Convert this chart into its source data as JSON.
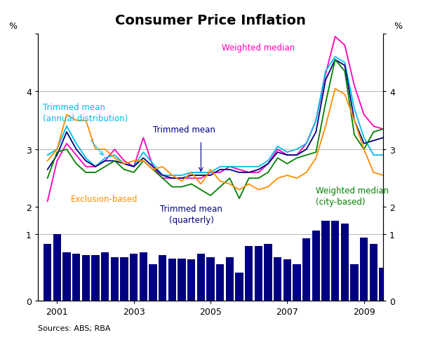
{
  "title": "Consumer Price Inflation",
  "source": "Sources: ABS; RBA",
  "line_ylim": [
    2.0,
    5.0
  ],
  "bar_ylim": [
    0,
    1.4
  ],
  "xmin": 2000.5,
  "xmax": 2009.5,
  "xticks": [
    2001,
    2003,
    2005,
    2007,
    2009
  ],
  "weighted_median": {
    "color": "#ff00bb",
    "x": [
      2000.75,
      2001.0,
      2001.25,
      2001.5,
      2001.75,
      2002.0,
      2002.25,
      2002.5,
      2002.75,
      2003.0,
      2003.25,
      2003.5,
      2003.75,
      2004.0,
      2004.25,
      2004.5,
      2004.75,
      2005.0,
      2005.25,
      2005.5,
      2005.75,
      2006.0,
      2006.25,
      2006.5,
      2006.75,
      2007.0,
      2007.25,
      2007.5,
      2007.75,
      2008.0,
      2008.25,
      2008.5,
      2008.75,
      2009.0,
      2009.25,
      2009.5
    ],
    "y": [
      2.1,
      2.8,
      3.1,
      2.9,
      2.7,
      2.7,
      2.8,
      3.0,
      2.8,
      2.7,
      3.2,
      2.7,
      2.5,
      2.5,
      2.5,
      2.5,
      2.5,
      2.6,
      2.6,
      2.7,
      2.65,
      2.6,
      2.6,
      2.75,
      3.0,
      2.9,
      2.9,
      3.1,
      3.5,
      4.3,
      4.95,
      4.8,
      4.1,
      3.6,
      3.4,
      3.35
    ]
  },
  "trimmed_mean_annual": {
    "color": "#00bbee",
    "x": [
      2000.75,
      2001.0,
      2001.25,
      2001.5,
      2001.75,
      2002.0,
      2002.25,
      2002.5,
      2002.75,
      2003.0,
      2003.25,
      2003.5,
      2003.75,
      2004.0,
      2004.25,
      2004.5,
      2004.75,
      2005.0,
      2005.25,
      2005.5,
      2005.75,
      2006.0,
      2006.25,
      2006.5,
      2006.75,
      2007.0,
      2007.25,
      2007.5,
      2007.75,
      2008.0,
      2008.25,
      2008.5,
      2008.75,
      2009.0,
      2009.25,
      2009.5
    ],
    "y": [
      2.9,
      3.0,
      3.4,
      3.1,
      2.85,
      2.7,
      2.85,
      2.9,
      2.75,
      2.7,
      2.95,
      2.75,
      2.55,
      2.55,
      2.55,
      2.6,
      2.6,
      2.6,
      2.7,
      2.7,
      2.7,
      2.7,
      2.7,
      2.8,
      3.05,
      2.95,
      3.0,
      3.1,
      3.5,
      4.35,
      4.6,
      4.5,
      3.7,
      3.2,
      2.9,
      2.9
    ]
  },
  "trimmed_mean": {
    "color": "#000080",
    "x": [
      2000.75,
      2001.0,
      2001.25,
      2001.5,
      2001.75,
      2002.0,
      2002.25,
      2002.5,
      2002.75,
      2003.0,
      2003.25,
      2003.5,
      2003.75,
      2004.0,
      2004.25,
      2004.5,
      2004.75,
      2005.0,
      2005.25,
      2005.5,
      2005.75,
      2006.0,
      2006.25,
      2006.5,
      2006.75,
      2007.0,
      2007.25,
      2007.5,
      2007.75,
      2008.0,
      2008.25,
      2008.5,
      2008.75,
      2009.0,
      2009.25,
      2009.5
    ],
    "y": [
      2.65,
      2.9,
      3.3,
      3.0,
      2.8,
      2.7,
      2.8,
      2.8,
      2.75,
      2.7,
      2.85,
      2.7,
      2.55,
      2.5,
      2.5,
      2.55,
      2.55,
      2.55,
      2.65,
      2.65,
      2.6,
      2.6,
      2.65,
      2.75,
      2.95,
      2.9,
      2.9,
      3.0,
      3.3,
      4.2,
      4.55,
      4.45,
      3.5,
      3.1,
      3.15,
      3.2
    ]
  },
  "weighted_median_city": {
    "color": "#008000",
    "x": [
      2000.75,
      2001.0,
      2001.25,
      2001.5,
      2001.75,
      2002.0,
      2002.25,
      2002.5,
      2002.75,
      2003.0,
      2003.25,
      2003.5,
      2003.75,
      2004.0,
      2004.25,
      2004.5,
      2004.75,
      2005.0,
      2005.25,
      2005.5,
      2005.75,
      2006.0,
      2006.25,
      2006.5,
      2006.75,
      2007.0,
      2007.25,
      2007.5,
      2007.75,
      2008.0,
      2008.25,
      2008.5,
      2008.75,
      2009.0,
      2009.25,
      2009.5
    ],
    "y": [
      2.5,
      2.95,
      3.0,
      2.75,
      2.6,
      2.6,
      2.7,
      2.8,
      2.65,
      2.6,
      2.8,
      2.65,
      2.5,
      2.35,
      2.35,
      2.4,
      2.3,
      2.2,
      2.35,
      2.5,
      2.15,
      2.5,
      2.5,
      2.6,
      2.85,
      2.75,
      2.85,
      2.9,
      2.95,
      3.8,
      4.55,
      4.35,
      3.25,
      3.0,
      3.3,
      3.35
    ]
  },
  "exclusion_based": {
    "color": "#ff8c00",
    "x": [
      2000.75,
      2001.0,
      2001.25,
      2001.5,
      2001.75,
      2002.0,
      2002.25,
      2002.5,
      2002.75,
      2003.0,
      2003.25,
      2003.5,
      2003.75,
      2004.0,
      2004.25,
      2004.5,
      2004.75,
      2005.0,
      2005.25,
      2005.5,
      2005.75,
      2006.0,
      2006.25,
      2006.5,
      2006.75,
      2007.0,
      2007.25,
      2007.5,
      2007.75,
      2008.0,
      2008.25,
      2008.5,
      2008.75,
      2009.0,
      2009.25,
      2009.5
    ],
    "y": [
      2.8,
      3.0,
      3.6,
      3.5,
      3.5,
      3.0,
      3.0,
      2.85,
      2.75,
      2.8,
      2.8,
      2.65,
      2.7,
      2.55,
      2.45,
      2.6,
      2.4,
      2.65,
      2.45,
      2.4,
      2.3,
      2.4,
      2.3,
      2.35,
      2.5,
      2.55,
      2.5,
      2.6,
      2.85,
      3.4,
      4.05,
      3.95,
      3.5,
      3.0,
      2.6,
      2.55
    ]
  },
  "bar_x": [
    2000.75,
    2001.0,
    2001.25,
    2001.5,
    2001.75,
    2002.0,
    2002.25,
    2002.5,
    2002.75,
    2003.0,
    2003.25,
    2003.5,
    2003.75,
    2004.0,
    2004.25,
    2004.5,
    2004.75,
    2005.0,
    2005.25,
    2005.5,
    2005.75,
    2006.0,
    2006.25,
    2006.5,
    2006.75,
    2007.0,
    2007.25,
    2007.5,
    2007.75,
    2008.0,
    2008.25,
    2008.5,
    2008.75,
    2009.0,
    2009.25,
    2009.5
  ],
  "bar_y": [
    0.85,
    1.0,
    0.72,
    0.7,
    0.68,
    0.68,
    0.72,
    0.65,
    0.65,
    0.7,
    0.72,
    0.55,
    0.68,
    0.63,
    0.63,
    0.62,
    0.7,
    0.65,
    0.55,
    0.65,
    0.42,
    0.82,
    0.82,
    0.85,
    0.65,
    0.62,
    0.55,
    0.93,
    1.05,
    1.2,
    1.2,
    1.15,
    0.55,
    0.95,
    0.85,
    0.5
  ],
  "bar_color": "#000080",
  "bg_color": "#ffffff",
  "grid_color": "#aaaaaa",
  "title_fontsize": 14,
  "label_fontsize": 8.5
}
